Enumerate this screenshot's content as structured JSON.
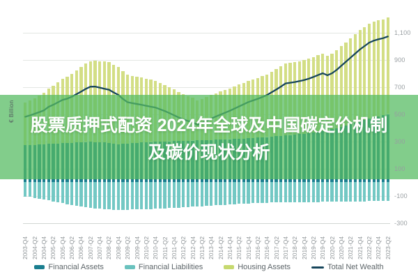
{
  "headline_overlay": {
    "line1": "股票质押式配资 2024年全球及中国碳定价机制",
    "line2": "及碳价现状分析",
    "text_color": "#ffffff",
    "band_color": "rgba(86,187,98,0.74)"
  },
  "chart_data": {
    "type": "bar",
    "subtype": "stacked-columns-with-line",
    "title": "",
    "xlabel": "",
    "ylabel": "€ Billion",
    "frequency": "quarterly",
    "x_start": "2003-Q4",
    "x_end": "2023-Q2",
    "n_points": 79,
    "tick_every": 2,
    "x_tick_labels": [
      "2003-Q4",
      "2004-Q2",
      "2004-Q4",
      "2005-Q2",
      "2005-Q4",
      "2006-Q2",
      "2006-Q4",
      "2007-Q2",
      "2007-Q4",
      "2008-Q2",
      "2008-Q4",
      "2009-Q2",
      "2009-Q4",
      "2010-Q2",
      "2010-Q4",
      "2011-Q2",
      "2011-Q4",
      "2012-Q2",
      "2012-Q4",
      "2013-Q2",
      "2013-Q4",
      "2014-Q2",
      "2014-Q4",
      "2015-Q2",
      "2015-Q4",
      "2016-Q2",
      "2016-Q4",
      "2017-Q2",
      "2017-Q4",
      "2018-Q2",
      "2018-Q4",
      "2019-Q2",
      "2019-Q4",
      "2020-Q2",
      "2020-Q4",
      "2021-Q2",
      "2021-Q4",
      "2022-Q2",
      "2022-Q4",
      "2023-Q2"
    ],
    "y_ticks": [
      {
        "label": "1,100",
        "value": 1100
      },
      {
        "label": "900",
        "value": 900
      },
      {
        "label": "700",
        "value": 700
      },
      {
        "label": "500",
        "value": 500
      },
      {
        "label": "300",
        "value": 300
      },
      {
        "label": "100",
        "value": 100
      },
      {
        "label": "-100",
        "value": -100
      },
      {
        "label": "-300",
        "value": -300
      }
    ],
    "ylim": [
      -300,
      1260
    ],
    "grid": true,
    "legend_position": "bottom",
    "series": [
      {
        "name": "Financial Assets",
        "type": "bar",
        "stack": "assets",
        "color": "#1a7e8f",
        "values": [
          270,
          272,
          274,
          276,
          278,
          280,
          282,
          284,
          286,
          288,
          290,
          292,
          294,
          295,
          296,
          295,
          293,
          290,
          286,
          282,
          278,
          280,
          283,
          286,
          289,
          291,
          293,
          295,
          297,
          298,
          299,
          300,
          301,
          302,
          303,
          304,
          305,
          306,
          307,
          308,
          310,
          311,
          312,
          314,
          315,
          317,
          319,
          321,
          323,
          325,
          327,
          329,
          331,
          334,
          337,
          340,
          343,
          346,
          349,
          352,
          355,
          359,
          364,
          369,
          374,
          380,
          388,
          396,
          405,
          415,
          426,
          437,
          448,
          458,
          468,
          476,
          484,
          492,
          500
        ]
      },
      {
        "name": "Housing Assets",
        "type": "bar",
        "stack": "assets",
        "color": "#d3de85",
        "values": [
          315,
          328,
          344,
          360,
          377,
          408,
          428,
          451,
          474,
          487,
          505,
          528,
          551,
          575,
          594,
          600,
          597,
          595,
          594,
          580,
          567,
          535,
          507,
          496,
          486,
          477,
          467,
          457,
          448,
          432,
          416,
          398,
          379,
          360,
          342,
          328,
          315,
          294,
          303,
          317,
          330,
          342,
          353,
          363,
          374,
          386,
          398,
          410,
          422,
          431,
          439,
          449,
          461,
          477,
          493,
          512,
          531,
          533,
          534,
          538,
          542,
          548,
          555,
          564,
          571,
          550,
          556,
          573,
          593,
          613,
          631,
          650,
          668,
          683,
          697,
          704,
          705,
          705,
          708
        ]
      },
      {
        "name": "Financial Liabilities",
        "type": "bar",
        "stack": "liabilities",
        "color": "#73c8c4",
        "values": [
          -105,
          -110,
          -116,
          -122,
          -128,
          -135,
          -142,
          -149,
          -156,
          -162,
          -168,
          -174,
          -180,
          -185,
          -189,
          -193,
          -196,
          -199,
          -201,
          -203,
          -204,
          -204,
          -203,
          -202,
          -201,
          -200,
          -199,
          -198,
          -197,
          -195,
          -193,
          -191,
          -189,
          -187,
          -185,
          -183,
          -181,
          -179,
          -177,
          -175,
          -173,
          -171,
          -169,
          -167,
          -165,
          -163,
          -161,
          -159,
          -157,
          -156,
          -154,
          -153,
          -152,
          -151,
          -150,
          -150,
          -149,
          -149,
          -148,
          -148,
          -147,
          -147,
          -146,
          -146,
          -145,
          -145,
          -144,
          -144,
          -143,
          -143,
          -142,
          -142,
          -141,
          -141,
          -140,
          -140,
          -139,
          -139,
          -138
        ]
      },
      {
        "name": "Total Net Wealth",
        "type": "line",
        "color": "#16455b",
        "values": [
          480,
          490,
          502,
          514,
          527,
          553,
          568,
          586,
          604,
          613,
          627,
          646,
          665,
          685,
          701,
          702,
          694,
          686,
          679,
          659,
          641,
          611,
          587,
          580,
          574,
          568,
          561,
          554,
          548,
          535,
          522,
          507,
          491,
          475,
          460,
          449,
          439,
          421,
          433,
          450,
          467,
          482,
          496,
          510,
          524,
          540,
          556,
          572,
          588,
          600,
          612,
          625,
          640,
          660,
          680,
          702,
          725,
          730,
          735,
          742,
          750,
          760,
          773,
          787,
          800,
          785,
          800,
          825,
          855,
          885,
          915,
          945,
          975,
          1000,
          1025,
          1040,
          1050,
          1058,
          1070
        ]
      }
    ]
  },
  "legend": [
    {
      "label": "Financial Assets",
      "color": "#1a7e8f",
      "shape": "swatch"
    },
    {
      "label": "Financial Liabilities",
      "color": "#6ac2be",
      "shape": "swatch"
    },
    {
      "label": "Housing Assets",
      "color": "#c6d96f",
      "shape": "swatch"
    },
    {
      "label": "Total Net Wealth",
      "color": "#16455b",
      "shape": "line"
    }
  ]
}
